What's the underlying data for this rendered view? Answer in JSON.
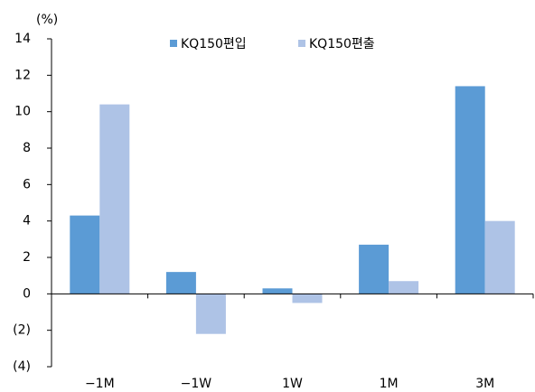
{
  "chart_data": {
    "type": "bar",
    "y_unit": "(%)",
    "categories": [
      "−1M",
      "−1W",
      "1W",
      "1M",
      "3M"
    ],
    "series": [
      {
        "name": "KQ150편입",
        "color": "#5b9bd5",
        "values": [
          4.3,
          1.2,
          0.3,
          2.7,
          11.4
        ]
      },
      {
        "name": "KQ150편출",
        "color": "#aec3e6",
        "values": [
          10.4,
          -2.2,
          -0.5,
          0.7,
          4.0
        ]
      }
    ],
    "ylim": [
      -4,
      14
    ],
    "yticks": [
      {
        "value": -4,
        "label": "(4)"
      },
      {
        "value": -2,
        "label": "(2)"
      },
      0,
      2,
      4,
      6,
      8,
      10,
      12,
      14
    ],
    "legend": "top"
  }
}
